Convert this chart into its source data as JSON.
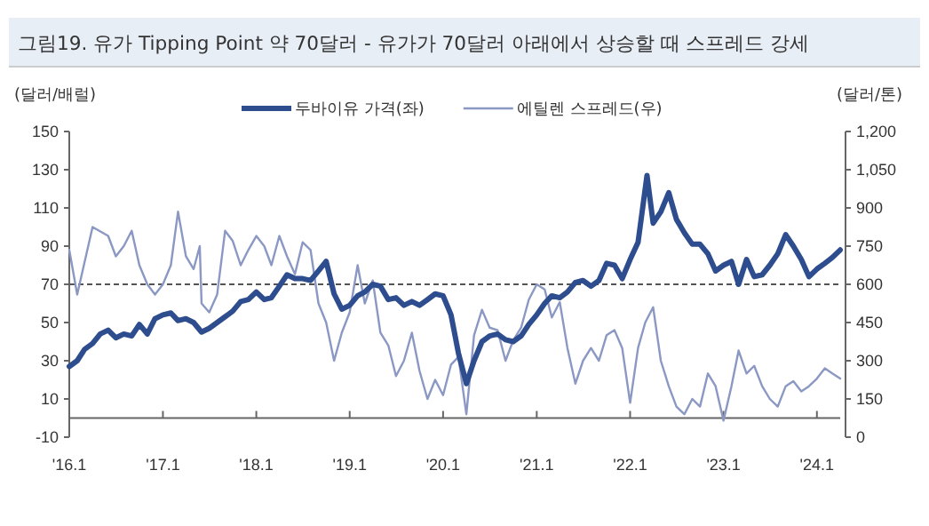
{
  "chart_data": {
    "type": "line",
    "title": "그림19. 유가 Tipping Point 약 70달러  -  유가가 70달러 아래에서 상승할 때 스프레드 강세",
    "ylabel": "(달러/배럴)",
    "y2label": "(달러/톤)",
    "legend": "top",
    "grid": false,
    "marker": "none",
    "xlim": [
      "2016-01",
      "2024-04"
    ],
    "xticks": [
      {
        "value": "2016-01",
        "label": "'16.1"
      },
      {
        "value": "2017-01",
        "label": "'17.1"
      },
      {
        "value": "2018-01",
        "label": "'18.1"
      },
      {
        "value": "2019-01",
        "label": "'19.1"
      },
      {
        "value": "2020-01",
        "label": "'20.1"
      },
      {
        "value": "2021-01",
        "label": "'21.1"
      },
      {
        "value": "2022-01",
        "label": "'22.1"
      },
      {
        "value": "2023-01",
        "label": "'23.1"
      },
      {
        "value": "2024-01",
        "label": "'24.1"
      }
    ],
    "ylim": [
      -10,
      150
    ],
    "yticks": [
      -10,
      10,
      30,
      50,
      70,
      90,
      110,
      130,
      150
    ],
    "y2lim": [
      0,
      1200
    ],
    "y2ticks": [
      0,
      150,
      300,
      450,
      600,
      750,
      900,
      {
        "value": 1050,
        "label": "1,050"
      },
      {
        "value": 1200,
        "label": "1,200"
      }
    ],
    "ref_lines": [
      {
        "axis": "y",
        "value": 70,
        "color": "#555555",
        "line_style": "dashed"
      }
    ],
    "series": [
      {
        "name": "두바이유 가격(좌)",
        "color": "#2e4d8f",
        "line_style": "solid",
        "x": [
          "2016-01",
          "2016-02",
          "2016-03",
          "2016-04",
          "2016-05",
          "2016-06",
          "2016-07",
          "2016-08",
          "2016-09",
          "2016-10",
          "2016-11",
          "2016-12",
          "2017-01",
          "2017-02",
          "2017-03",
          "2017-04",
          "2017-05",
          "2017-06",
          "2017-07",
          "2017-08",
          "2017-09",
          "2017-10",
          "2017-11",
          "2017-12",
          "2018-01",
          "2018-02",
          "2018-03",
          "2018-04",
          "2018-05",
          "2018-06",
          "2018-07",
          "2018-08",
          "2018-09",
          "2018-10",
          "2018-11",
          "2018-12",
          "2019-01",
          "2019-02",
          "2019-03",
          "2019-04",
          "2019-05",
          "2019-06",
          "2019-07",
          "2019-08",
          "2019-09",
          "2019-10",
          "2019-11",
          "2019-12",
          "2020-01",
          "2020-02",
          "2020-03",
          "2020-04",
          "2020-05",
          "2020-06",
          "2020-07",
          "2020-08",
          "2020-09",
          "2020-10",
          "2020-11",
          "2020-12",
          "2021-01",
          "2021-02",
          "2021-03",
          "2021-04",
          "2021-05",
          "2021-06",
          "2021-07",
          "2021-08",
          "2021-09",
          "2021-10",
          "2021-11",
          "2021-12",
          "2022-01",
          "2022-02",
          "2022-03-08",
          "2022-04",
          "2022-05",
          "2022-06",
          "2022-07",
          "2022-08",
          "2022-09",
          "2022-10",
          "2022-11",
          "2022-12",
          "2023-01",
          "2023-02",
          "2023-03",
          "2023-04",
          "2023-05",
          "2023-06",
          "2023-07",
          "2023-08",
          "2023-09",
          "2023-10",
          "2023-11",
          "2023-12",
          "2024-01",
          "2024-02",
          "2024-03",
          "2024-04"
        ],
        "values": [
          27,
          30,
          36,
          39,
          44,
          46,
          42,
          44,
          43,
          49,
          44,
          52,
          54,
          55,
          51,
          52,
          50,
          45,
          47,
          50,
          53,
          56,
          61,
          62,
          66,
          62,
          63,
          69,
          75,
          73,
          73,
          72,
          77,
          82,
          65,
          57,
          59,
          64,
          66,
          70,
          69,
          62,
          63,
          59,
          61,
          59,
          62,
          65,
          64,
          54,
          34,
          18,
          30,
          40,
          43,
          44,
          41,
          40,
          43,
          49,
          54,
          60,
          64,
          63,
          66,
          71,
          72,
          69,
          72,
          81,
          80,
          73,
          83,
          92,
          127,
          102,
          108,
          118,
          104,
          97,
          91,
          91,
          86,
          77,
          80,
          82,
          70,
          83,
          74,
          75,
          80,
          86,
          96,
          90,
          83,
          74,
          78,
          81,
          84,
          88
        ]
      },
      {
        "name": "에틸렌 스프레드(우)",
        "color": "#8b98c4",
        "line_style": "solid",
        "axis": "y2",
        "x": [
          "2016-01",
          "2016-02",
          "2016-04",
          "2016-06",
          "2016-07",
          "2016-08",
          "2016-09",
          "2016-10",
          "2016-11",
          "2016-12",
          "2017-01",
          "2017-02",
          "2017-03",
          "2017-04",
          "2017-05",
          "2017-05-25",
          "2017-06",
          "2017-07",
          "2017-08",
          "2017-09",
          "2017-10",
          "2017-11",
          "2017-12",
          "2018-01",
          "2018-02",
          "2018-03",
          "2018-04",
          "2018-05",
          "2018-06",
          "2018-07",
          "2018-08",
          "2018-09",
          "2018-10",
          "2018-11",
          "2018-12",
          "2019-01",
          "2019-02",
          "2019-03",
          "2019-04",
          "2019-05",
          "2019-06",
          "2019-07",
          "2019-08",
          "2019-09",
          "2019-10",
          "2019-11",
          "2019-12",
          "2020-01",
          "2020-02",
          "2020-03",
          "2020-04",
          "2020-05",
          "2020-06",
          "2020-07",
          "2020-08",
          "2020-09",
          "2020-10",
          "2020-11",
          "2020-12",
          "2021-01",
          "2021-02",
          "2021-03",
          "2021-04",
          "2021-05",
          "2021-06",
          "2021-07",
          "2021-08",
          "2021-09",
          "2021-10",
          "2021-11",
          "2021-12",
          "2022-01",
          "2022-02",
          "2022-03",
          "2022-04",
          "2022-05",
          "2022-06",
          "2022-07",
          "2022-08",
          "2022-09",
          "2022-10",
          "2022-11",
          "2022-12",
          "2023-01",
          "2023-02",
          "2023-03",
          "2023-04",
          "2023-05",
          "2023-06",
          "2023-07",
          "2023-08",
          "2023-09",
          "2023-10",
          "2023-11",
          "2023-12",
          "2024-01",
          "2024-02",
          "2024-03",
          "2024-04"
        ],
        "values": [
          735,
          560,
          825,
          790,
          710,
          750,
          810,
          675,
          600,
          560,
          600,
          675,
          885,
          710,
          660,
          750,
          525,
          490,
          560,
          810,
          770,
          675,
          735,
          790,
          750,
          675,
          790,
          710,
          640,
          765,
          735,
          525,
          450,
          300,
          410,
          490,
          675,
          525,
          615,
          410,
          360,
          240,
          300,
          410,
          260,
          150,
          225,
          165,
          285,
          315,
          90,
          400,
          500,
          430,
          420,
          300,
          380,
          430,
          540,
          600,
          580,
          470,
          530,
          350,
          210,
          300,
          350,
          300,
          400,
          420,
          350,
          135,
          350,
          450,
          510,
          300,
          200,
          120,
          90,
          150,
          120,
          250,
          200,
          65,
          200,
          340,
          250,
          280,
          200,
          150,
          120,
          200,
          220,
          180,
          200,
          230,
          270,
          250,
          230
        ]
      }
    ]
  }
}
